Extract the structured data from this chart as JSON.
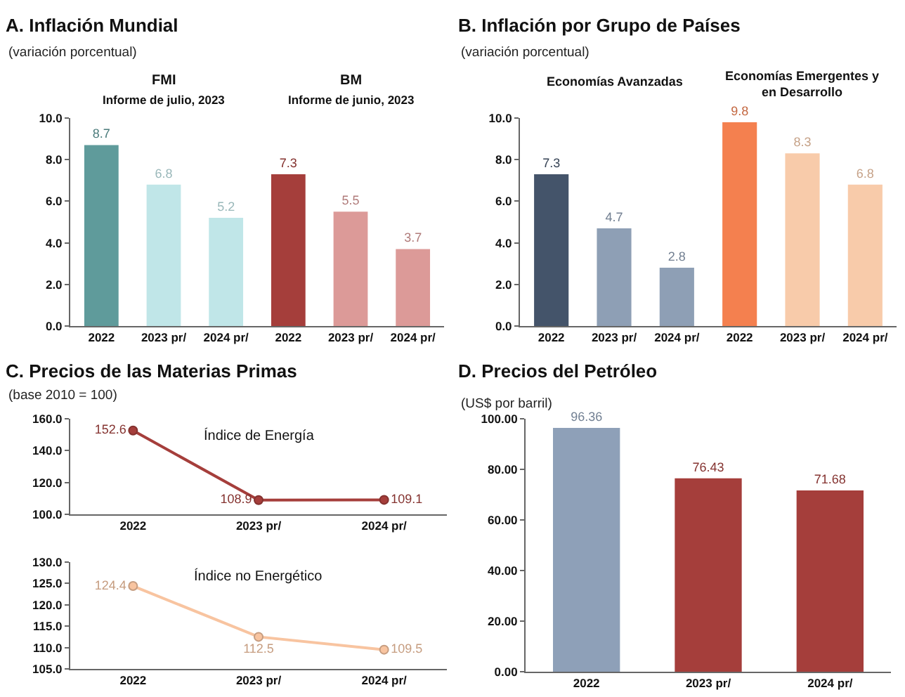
{
  "chart_data": [
    {
      "type": "bar",
      "title": "A. Inflación Mundial",
      "subtitle": "(variación porcentual)",
      "categories": [
        "2022",
        "2023 pr/",
        "2024 pr/",
        "2022",
        "2023 pr/",
        "2024 pr/"
      ],
      "values": [
        8.7,
        6.8,
        5.2,
        7.3,
        5.5,
        3.7
      ],
      "colors": [
        "#5f9b9b",
        "#c0e6e8",
        "#c0e6e8",
        "#a53e3b",
        "#dc9a98",
        "#dc9a98"
      ],
      "ylim": [
        0,
        10
      ],
      "yticks": [
        {
          "value": 0,
          "label": "0.0"
        },
        {
          "value": 2,
          "label": "2.0"
        },
        {
          "value": 4,
          "label": "4.0"
        },
        {
          "value": 6,
          "label": "6.0"
        },
        {
          "value": 8,
          "label": "8.0"
        },
        {
          "value": 10,
          "label": "10.0"
        }
      ],
      "data_labels": true,
      "annotations": [
        "FMI",
        "Informe de julio, 2023",
        "BM",
        "Informe de junio, 2023"
      ]
    },
    {
      "type": "bar",
      "title": "B. Inflación por Grupo de Países",
      "subtitle": "(variación porcentual)",
      "categories": [
        "2022",
        "2023 pr/",
        "2024 pr/",
        "2022",
        "2023 pr/",
        "2024 pr/"
      ],
      "values": [
        7.3,
        4.7,
        2.8,
        9.8,
        8.3,
        6.8
      ],
      "colors": [
        "#44546a",
        "#8e9fb5",
        "#8e9fb5",
        "#f4804f",
        "#f8cbaa",
        "#f8cbaa"
      ],
      "ylim": [
        0,
        10
      ],
      "yticks": [
        {
          "value": 0,
          "label": "0.0"
        },
        {
          "value": 2,
          "label": "2.0"
        },
        {
          "value": 4,
          "label": "4.0"
        },
        {
          "value": 6,
          "label": "6.0"
        },
        {
          "value": 8,
          "label": "8.0"
        },
        {
          "value": 10,
          "label": "10.0"
        }
      ],
      "data_labels": true,
      "annotations": [
        "Economías Avanzadas",
        "Economías Emergentes y\nen Desarrollo"
      ]
    },
    {
      "type": "line",
      "title": "C. Precios de las Materias Primas",
      "subtitle": "(base 2010 = 100)",
      "categories": [
        "2022",
        "2023 pr/",
        "2024 pr/"
      ],
      "series": [
        {
          "color": "#a53e3b",
          "values": [
            152.6,
            108.9,
            109.1
          ]
        }
      ],
      "ylim": [
        100,
        160
      ],
      "yticks": [
        {
          "value": 100,
          "label": "100.0"
        },
        {
          "value": 120,
          "label": "120.0"
        },
        {
          "value": 140,
          "label": "140.0"
        },
        {
          "value": 160,
          "label": "160.0"
        }
      ],
      "marker": "circle",
      "data_labels": true,
      "annotations": [
        "Índice de Energía"
      ]
    },
    {
      "type": "line",
      "categories": [
        "2022",
        "2023 pr/",
        "2024 pr/"
      ],
      "series": [
        {
          "color": "#f8c4a0",
          "values": [
            124.4,
            112.5,
            109.5
          ]
        }
      ],
      "ylim": [
        105,
        130
      ],
      "yticks": [
        {
          "value": 105,
          "label": "105.0"
        },
        {
          "value": 110,
          "label": "110.0"
        },
        {
          "value": 115,
          "label": "115.0"
        },
        {
          "value": 120,
          "label": "120.0"
        },
        {
          "value": 125,
          "label": "125.0"
        },
        {
          "value": 130,
          "label": "130.0"
        }
      ],
      "marker": "circle",
      "data_labels": true,
      "annotations": [
        "Índice no Energético"
      ]
    },
    {
      "type": "bar",
      "title": "D. Precios del Petróleo",
      "subtitle": "(US$ por barril)",
      "categories": [
        "2022",
        "2023 pr/",
        "2024 pr/"
      ],
      "values": [
        96.36,
        76.43,
        71.68
      ],
      "colors": [
        "#8ea0b8",
        "#a53e3b",
        "#a53e3b"
      ],
      "ylim": [
        0,
        100
      ],
      "yticks": [
        {
          "value": 0,
          "label": "0.00"
        },
        {
          "value": 20,
          "label": "20.00"
        },
        {
          "value": 40,
          "label": "40.00"
        },
        {
          "value": 60,
          "label": "60.00"
        },
        {
          "value": 80,
          "label": "80.00"
        },
        {
          "value": 100,
          "label": "100.00"
        }
      ],
      "data_labels": true
    }
  ]
}
